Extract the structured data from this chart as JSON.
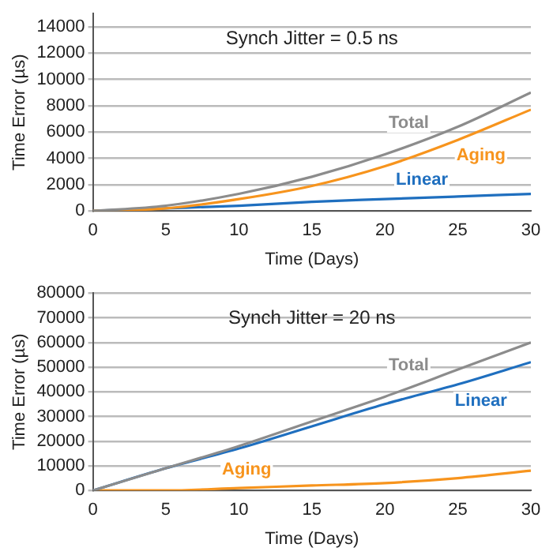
{
  "chart_data": [
    {
      "type": "line",
      "annotations": [
        "Synch Jitter = 0.5 ns"
      ],
      "xlabel": "Time (Days)",
      "ylabel": "Time Error (µs)",
      "x": [
        0,
        5,
        10,
        15,
        20,
        25,
        30
      ],
      "xlim": [
        0,
        30
      ],
      "xticks": [
        0,
        5,
        10,
        15,
        20,
        25,
        30
      ],
      "ylim": [
        0,
        15000
      ],
      "yticks": [
        0,
        2000,
        4000,
        6000,
        8000,
        10000,
        12000,
        14000
      ],
      "grid": "y",
      "legend": false,
      "marker": "none",
      "series": [
        {
          "name": "Total",
          "color": "#8c8c8c",
          "values": [
            0,
            400,
            1300,
            2600,
            4300,
            6400,
            9000
          ]
        },
        {
          "name": "Aging",
          "color": "#f7941d",
          "values": [
            0,
            200,
            900,
            1900,
            3400,
            5400,
            7700
          ]
        },
        {
          "name": "Linear",
          "color": "#1f6fbf",
          "values": [
            0,
            200,
            400,
            700,
            900,
            1100,
            1300
          ]
        }
      ]
    },
    {
      "type": "line",
      "annotations": [
        "Synch Jitter = 20 ns"
      ],
      "xlabel": "Time (Days)",
      "ylabel": "Time Error (µs)",
      "x": [
        0,
        5,
        10,
        15,
        20,
        25,
        30
      ],
      "xlim": [
        0,
        30
      ],
      "xticks": [
        0,
        5,
        10,
        15,
        20,
        25,
        30
      ],
      "ylim": [
        0,
        80000
      ],
      "yticks": [
        0,
        10000,
        20000,
        30000,
        40000,
        50000,
        60000,
        70000,
        80000
      ],
      "grid": "y",
      "legend": false,
      "marker": "none",
      "series": [
        {
          "name": "Total",
          "color": "#8c8c8c",
          "values": [
            0,
            9000,
            18000,
            28000,
            38000,
            49000,
            60000
          ]
        },
        {
          "name": "Linear",
          "color": "#1f6fbf",
          "values": [
            0,
            9000,
            17000,
            26000,
            35000,
            43000,
            52000
          ]
        },
        {
          "name": "Aging",
          "color": "#f7941d",
          "values": [
            0,
            0,
            1000,
            2000,
            3000,
            5000,
            8000
          ]
        }
      ]
    }
  ]
}
